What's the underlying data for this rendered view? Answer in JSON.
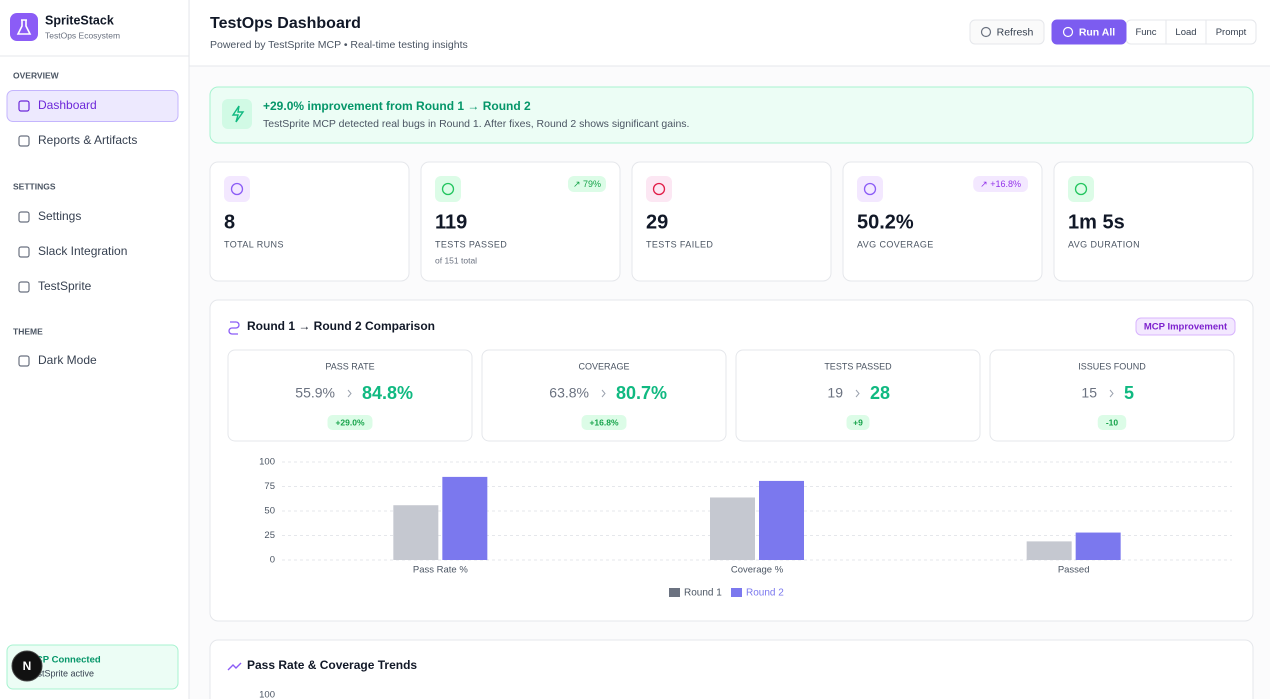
{
  "sidebar": {
    "brand": "SpriteStack",
    "tagline": "TestOps Ecosystem",
    "sections": [
      {
        "title": "OVERVIEW",
        "items": [
          "Dashboard",
          "Reports & Artifacts"
        ]
      },
      {
        "title": "SETTINGS",
        "items": [
          "Settings",
          "Slack Integration",
          "TestSprite"
        ]
      },
      {
        "title": "THEME",
        "items": [
          "Dark Mode"
        ]
      }
    ],
    "status": {
      "title": "MCP Connected",
      "text": "TestSprite active",
      "avatar": "N"
    }
  },
  "header": {
    "title": "TestOps Dashboard",
    "subtitle": "Powered by TestSprite MCP • Real-time testing insights",
    "buttons": [
      "Refresh",
      "Run All",
      "Func",
      "Load",
      "Prompt"
    ]
  },
  "banner": {
    "title": "+29.0% improvement from Round 1 → Round 2",
    "text": "TestSprite MCP detected real bugs in Round 1. After fixes, Round 2 shows significant gains."
  },
  "stats": [
    {
      "value": "8",
      "label": "TOTAL RUNS"
    },
    {
      "value": "119",
      "label": "TESTS PASSED",
      "note": "of 151 total",
      "badge": "↗ 79%"
    },
    {
      "value": "29",
      "label": "TESTS FAILED"
    },
    {
      "value": "50.2%",
      "label": "AVG COVERAGE",
      "badge": "↗ +16.8%"
    },
    {
      "value": "1m 5s",
      "label": "AVG DURATION"
    }
  ],
  "comparison": {
    "title": "Round 1 → Round 2 Comparison",
    "badge": "MCP Improvement",
    "cards": [
      {
        "label": "PASS RATE",
        "before": "55.9%",
        "after": "84.8%",
        "delta": "+29.0%"
      },
      {
        "label": "COVERAGE",
        "before": "63.8%",
        "after": "80.7%",
        "delta": "+16.8%"
      },
      {
        "label": "TESTS PASSED",
        "before": "19",
        "after": "28",
        "delta": "+9"
      },
      {
        "label": "ISSUES FOUND",
        "before": "15",
        "after": "5",
        "delta": "-10"
      }
    ]
  },
  "chart_data": {
    "type": "bar",
    "categories": [
      "Pass Rate %",
      "Coverage %",
      "Passed"
    ],
    "series": [
      {
        "name": "Round 1",
        "color": "#c5c8d0",
        "values": [
          55.9,
          63.8,
          19
        ]
      },
      {
        "name": "Round 2",
        "color": "#7b78ee",
        "values": [
          84.8,
          80.7,
          28
        ]
      }
    ],
    "ylim": [
      0,
      100
    ],
    "yticks": [
      0,
      25,
      50,
      75,
      100
    ],
    "grid": true
  },
  "trends": {
    "title": "Pass Rate & Coverage Trends",
    "yticks": [
      100
    ]
  }
}
